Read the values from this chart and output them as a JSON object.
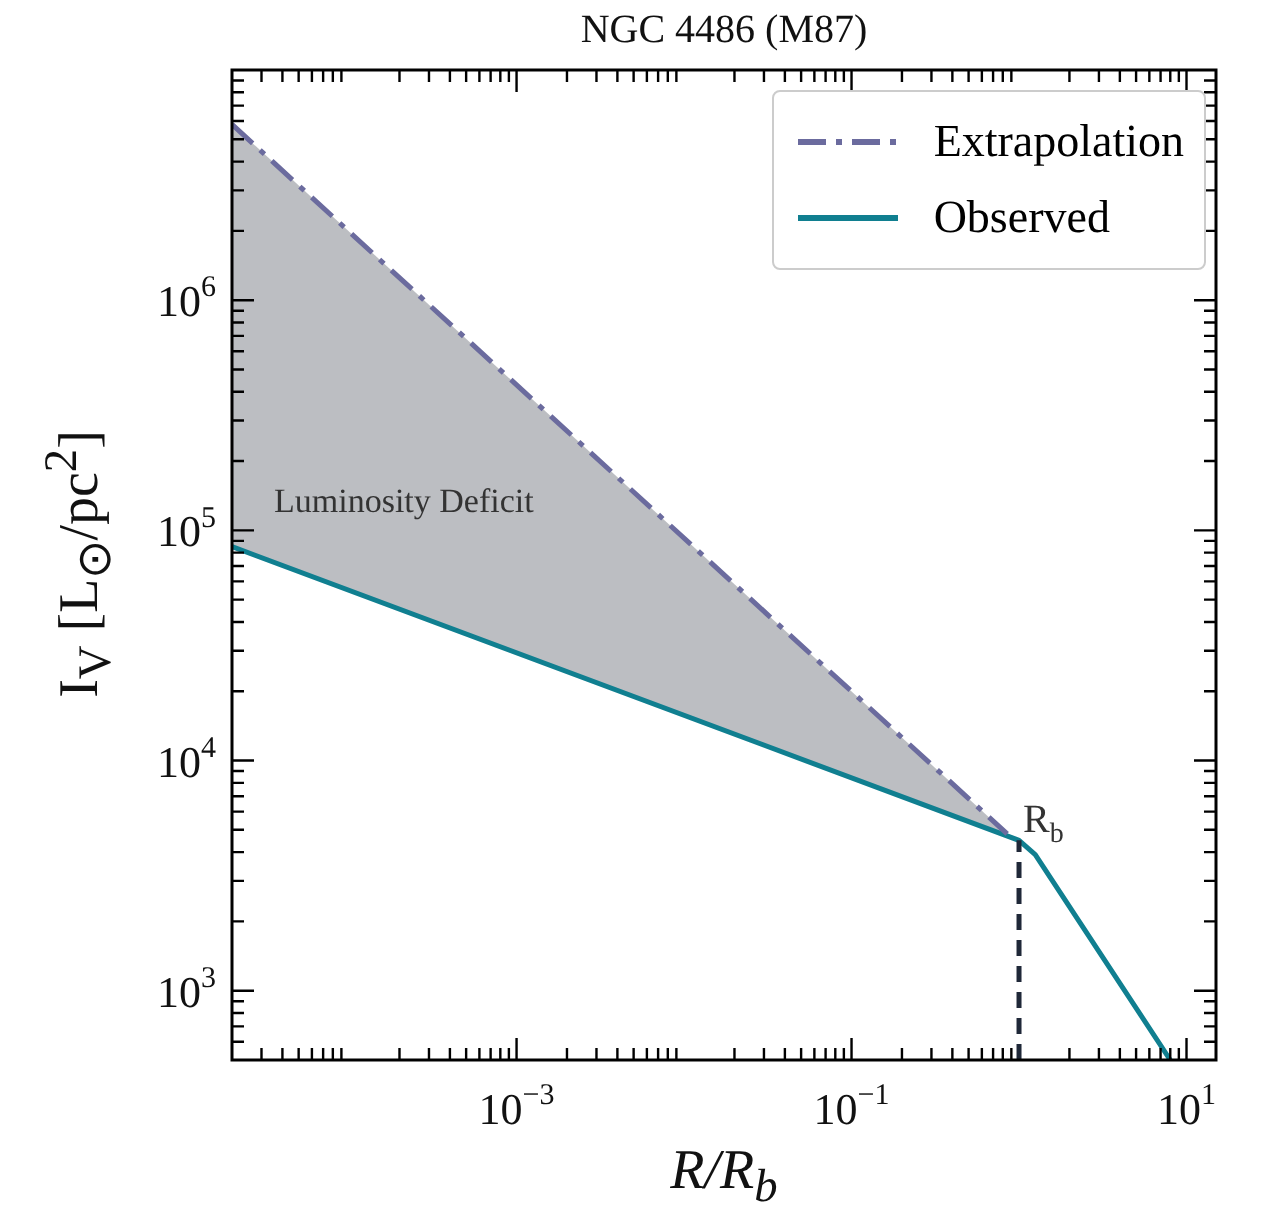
{
  "chart_data": {
    "type": "line",
    "title": "NGC 4486 (M87)",
    "xlabel": "R/R$_{b}$",
    "ylabel": "I$_{V}$ [L$_{⊙}$/pc$^{2}$]",
    "log": "xy",
    "xlim": [
      2e-05,
      15
    ],
    "ylim": [
      500,
      10000000
    ],
    "xticks": [
      {
        "value": 0.001,
        "label": "10$^{−3}$"
      },
      {
        "value": 0.1,
        "label": "10$^{−1}$"
      },
      {
        "value": 10,
        "label": "10$^{1}$"
      }
    ],
    "yticks": [
      {
        "value": 1000,
        "label": "10$^{3}$"
      },
      {
        "value": 10000,
        "label": "10$^{4}$"
      },
      {
        "value": 100000,
        "label": "10$^{5}$"
      },
      {
        "value": 1000000,
        "label": "10$^{6}$"
      }
    ],
    "series": [
      {
        "name": "Extrapolation",
        "color": "#6b6b9e",
        "line_style": "dashdot",
        "x": [
          2e-05,
          0.85
        ],
        "values": [
          5800000,
          4800
        ],
        "lower": [
          85000,
          4800
        ],
        "upper": [
          5800000,
          4800
        ]
      },
      {
        "name": "Observed",
        "color": "#107f90",
        "line_style": "solid",
        "x": [
          2e-05,
          1,
          1.25,
          8
        ],
        "values": [
          85000,
          4500,
          3900,
          500
        ]
      }
    ],
    "ref_lines": [
      {
        "axis": "x",
        "value": 1,
        "color": "#1f2838",
        "line_style": "dashed"
      }
    ],
    "annotations": [
      "Luminosity Deficit",
      {
        "text": "R$_{b}$",
        "x": 1,
        "y": 4700
      }
    ],
    "legend": "top right",
    "grid": false,
    "marker": "none"
  }
}
